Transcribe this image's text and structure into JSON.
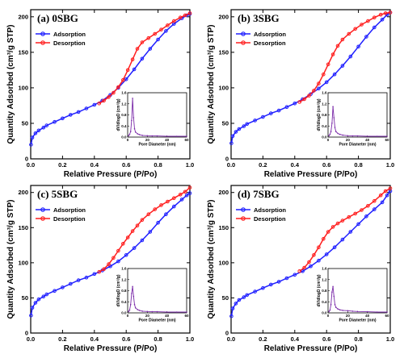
{
  "chart_data": [
    {
      "type": "line",
      "title": "(a) 0SBG",
      "xlabel": "Relative Pressure (P/Po)",
      "ylabel": "Quantity Adsorbed (cm³/g STP)",
      "xlim": [
        0,
        1.0
      ],
      "ylim": [
        0,
        210
      ],
      "xticks": [
        "0.0",
        "0.2",
        "0.4",
        "0.6",
        "0.8",
        "1.0"
      ],
      "yticks": [
        "0",
        "50",
        "100",
        "150",
        "200"
      ],
      "legend_position": "top-left",
      "series": [
        {
          "name": "Adsorption",
          "color": "#1f1fff",
          "marker": "circle",
          "x": [
            0.002,
            0.01,
            0.03,
            0.05,
            0.08,
            0.1,
            0.15,
            0.2,
            0.25,
            0.3,
            0.35,
            0.4,
            0.45,
            0.5,
            0.55,
            0.6,
            0.65,
            0.7,
            0.75,
            0.8,
            0.85,
            0.9,
            0.95,
            0.98,
            1.0
          ],
          "y": [
            20,
            30,
            36,
            40,
            44,
            47,
            52,
            57,
            62,
            66,
            71,
            76,
            82,
            90,
            100,
            112,
            126,
            141,
            155,
            168,
            180,
            190,
            198,
            202,
            204
          ]
        },
        {
          "name": "Desorption",
          "color": "#ff1f1f",
          "marker": "circle",
          "x": [
            1.0,
            0.97,
            0.94,
            0.9,
            0.86,
            0.82,
            0.78,
            0.74,
            0.7,
            0.67,
            0.64,
            0.61,
            0.58,
            0.55,
            0.52,
            0.49,
            0.46,
            0.43
          ],
          "y": [
            205,
            202,
            199,
            194,
            188,
            182,
            176,
            170,
            164,
            155,
            140,
            125,
            111,
            101,
            93,
            87,
            82,
            78
          ]
        }
      ],
      "inset": {
        "xlabel": "Pore Diameter (nm)",
        "ylabel": "dV/dlogD (cm³/g)",
        "xlim": [
          0,
          60
        ],
        "ylim": [
          0,
          1.6
        ],
        "xticks": [
          "0",
          "20",
          "40",
          "60"
        ],
        "yticks": [
          "0.0",
          "0.4",
          "0.8",
          "1.2",
          "1.6"
        ],
        "x": [
          1,
          2,
          3,
          4,
          5,
          6,
          7,
          8,
          10,
          12,
          15,
          20,
          25,
          30,
          40,
          50,
          60
        ],
        "y": [
          0.05,
          0.1,
          0.2,
          0.6,
          1.4,
          0.7,
          0.3,
          0.18,
          0.12,
          0.09,
          0.06,
          0.05,
          0.04,
          0.04,
          0.03,
          0.03,
          0.03
        ]
      }
    },
    {
      "type": "line",
      "title": "(b) 3SBG",
      "xlabel": "Relative Pressure (P/Po)",
      "ylabel": "Quantity Adsorbed (cm³/g STP)",
      "xlim": [
        0,
        1.0
      ],
      "ylim": [
        0,
        210
      ],
      "xticks": [
        "0.0",
        "0.2",
        "0.4",
        "0.6",
        "0.8",
        "1.0"
      ],
      "yticks": [
        "0",
        "50",
        "100",
        "150",
        "200"
      ],
      "legend_position": "top-left",
      "series": [
        {
          "name": "Adsorption",
          "color": "#1f1fff",
          "marker": "circle",
          "x": [
            0.002,
            0.01,
            0.03,
            0.05,
            0.08,
            0.1,
            0.15,
            0.2,
            0.25,
            0.3,
            0.35,
            0.4,
            0.45,
            0.5,
            0.55,
            0.6,
            0.65,
            0.7,
            0.75,
            0.8,
            0.85,
            0.9,
            0.95,
            0.98,
            1.0
          ],
          "y": [
            22,
            32,
            38,
            42,
            46,
            49,
            54,
            59,
            64,
            68,
            73,
            78,
            84,
            91,
            99,
            108,
            119,
            131,
            144,
            158,
            172,
            185,
            196,
            203,
            206
          ]
        },
        {
          "name": "Desorption",
          "color": "#ff1f1f",
          "marker": "circle",
          "x": [
            1.0,
            0.97,
            0.94,
            0.9,
            0.86,
            0.82,
            0.78,
            0.74,
            0.7,
            0.67,
            0.64,
            0.61,
            0.58,
            0.55,
            0.52,
            0.49,
            0.46,
            0.43
          ],
          "y": [
            206,
            205,
            203,
            199,
            194,
            189,
            183,
            176,
            168,
            159,
            147,
            133,
            119,
            106,
            96,
            89,
            84,
            80
          ]
        }
      ],
      "inset": {
        "xlabel": "Pore Diameter (nm)",
        "ylabel": "dV/dlogD (cm³/g)",
        "xlim": [
          0,
          60
        ],
        "ylim": [
          0,
          1.6
        ],
        "xticks": [
          "0",
          "20",
          "40",
          "60"
        ],
        "yticks": [
          "0.0",
          "0.4",
          "0.8",
          "1.2",
          "1.6"
        ],
        "x": [
          1,
          2,
          3,
          4,
          5,
          6,
          7,
          8,
          10,
          12,
          15,
          20,
          25,
          30,
          40,
          50,
          60
        ],
        "y": [
          0.05,
          0.1,
          0.2,
          0.5,
          1.1,
          0.7,
          0.35,
          0.2,
          0.13,
          0.1,
          0.07,
          0.05,
          0.04,
          0.04,
          0.03,
          0.03,
          0.03
        ]
      }
    },
    {
      "type": "line",
      "title": "(c) 5SBG",
      "xlabel": "Relative Pressure (P/Po)",
      "ylabel": "Quantity Adsorbed (cm³/g STP)",
      "xlim": [
        0,
        1.0
      ],
      "ylim": [
        0,
        210
      ],
      "xticks": [
        "0.0",
        "0.2",
        "0.4",
        "0.6",
        "0.8",
        "1.0"
      ],
      "yticks": [
        "0",
        "50",
        "100",
        "150",
        "200"
      ],
      "legend_position": "top-left",
      "series": [
        {
          "name": "Adsorption",
          "color": "#1f1fff",
          "marker": "circle",
          "x": [
            0.002,
            0.01,
            0.03,
            0.05,
            0.08,
            0.1,
            0.15,
            0.2,
            0.25,
            0.3,
            0.35,
            0.4,
            0.45,
            0.5,
            0.55,
            0.6,
            0.65,
            0.7,
            0.75,
            0.8,
            0.85,
            0.9,
            0.95,
            0.98,
            1.0
          ],
          "y": [
            25,
            36,
            43,
            48,
            52,
            55,
            60,
            65,
            70,
            75,
            79,
            84,
            89,
            95,
            102,
            111,
            121,
            132,
            144,
            157,
            169,
            180,
            190,
            196,
            199
          ]
        },
        {
          "name": "Desorption",
          "color": "#ff1f1f",
          "marker": "circle",
          "x": [
            1.0,
            0.97,
            0.94,
            0.9,
            0.86,
            0.82,
            0.78,
            0.74,
            0.7,
            0.67,
            0.64,
            0.61,
            0.58,
            0.55,
            0.52,
            0.49,
            0.46,
            0.43
          ],
          "y": [
            207,
            201,
            197,
            192,
            187,
            182,
            176,
            169,
            161,
            153,
            145,
            136,
            127,
            117,
            107,
            98,
            91,
            87
          ]
        }
      ],
      "inset": {
        "xlabel": "Pore Diameter (nm)",
        "ylabel": "dV/dlogD (cm³/g)",
        "xlim": [
          0,
          60
        ],
        "ylim": [
          0,
          1.6
        ],
        "xticks": [
          "0",
          "20",
          "40",
          "60"
        ],
        "yticks": [
          "0.0",
          "0.4",
          "0.8",
          "1.2",
          "1.6"
        ],
        "x": [
          1,
          2,
          3,
          4,
          5,
          6,
          7,
          8,
          10,
          12,
          15,
          20,
          25,
          30,
          40,
          50,
          60
        ],
        "y": [
          0.05,
          0.1,
          0.3,
          0.7,
          0.95,
          0.6,
          0.3,
          0.18,
          0.12,
          0.09,
          0.06,
          0.05,
          0.04,
          0.04,
          0.03,
          0.03,
          0.03
        ]
      }
    },
    {
      "type": "line",
      "title": "(d) 7SBG",
      "xlabel": "Relative Pressure (P/Po)",
      "ylabel": "Quantity Adsorbed (cm³/g STP)",
      "xlim": [
        0,
        1.0
      ],
      "ylim": [
        0,
        210
      ],
      "xticks": [
        "0.0",
        "0.2",
        "0.4",
        "0.6",
        "0.8",
        "1.0"
      ],
      "yticks": [
        "0",
        "50",
        "100",
        "150",
        "200"
      ],
      "legend_position": "top-left",
      "series": [
        {
          "name": "Adsorption",
          "color": "#1f1fff",
          "marker": "circle",
          "x": [
            0.002,
            0.01,
            0.03,
            0.05,
            0.08,
            0.1,
            0.15,
            0.2,
            0.25,
            0.3,
            0.35,
            0.4,
            0.45,
            0.5,
            0.55,
            0.6,
            0.65,
            0.7,
            0.75,
            0.8,
            0.85,
            0.9,
            0.95,
            0.98,
            1.0
          ],
          "y": [
            24,
            35,
            42,
            47,
            51,
            54,
            59,
            64,
            69,
            73,
            78,
            83,
            88,
            95,
            103,
            112,
            122,
            133,
            144,
            155,
            166,
            176,
            186,
            196,
            202
          ]
        },
        {
          "name": "Desorption",
          "color": "#ff1f1f",
          "marker": "circle",
          "x": [
            1.0,
            0.97,
            0.94,
            0.9,
            0.86,
            0.82,
            0.78,
            0.74,
            0.7,
            0.67,
            0.64,
            0.61,
            0.58,
            0.55,
            0.52,
            0.49,
            0.46,
            0.43
          ],
          "y": [
            206,
            202,
            196,
            188,
            181,
            175,
            170,
            165,
            160,
            156,
            151,
            144,
            134,
            122,
            111,
            101,
            93,
            88
          ]
        }
      ],
      "inset": {
        "xlabel": "Pore Diameter (nm)",
        "ylabel": "dV/dlogD (cm³/g)",
        "xlim": [
          0,
          60
        ],
        "ylim": [
          0,
          1.6
        ],
        "xticks": [
          "0",
          "20",
          "40",
          "60"
        ],
        "yticks": [
          "0.0",
          "0.4",
          "0.8",
          "1.2",
          "1.6"
        ],
        "x": [
          1,
          2,
          3,
          4,
          5,
          6,
          7,
          8,
          10,
          12,
          15,
          20,
          25,
          30,
          40,
          50,
          60
        ],
        "y": [
          0.05,
          0.1,
          0.3,
          0.75,
          0.95,
          0.6,
          0.3,
          0.2,
          0.14,
          0.11,
          0.09,
          0.08,
          0.06,
          0.05,
          0.04,
          0.03,
          0.03
        ]
      }
    }
  ]
}
